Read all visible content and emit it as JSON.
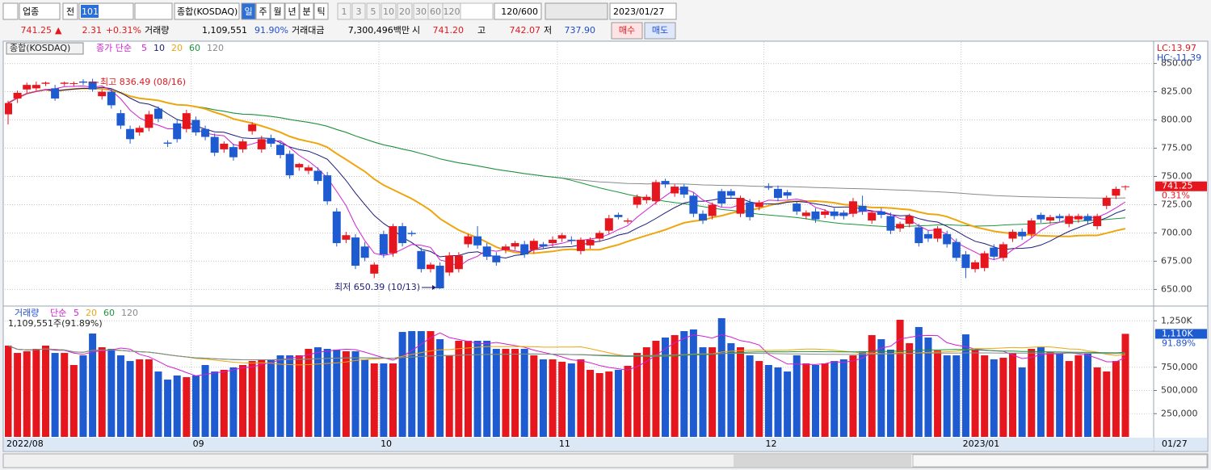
{
  "toolbar": {
    "market": "업종",
    "all": "전",
    "code": "101",
    "name": "종합(KOSDAQ)",
    "periods": [
      "일",
      "주",
      "월",
      "년",
      "분",
      "틱"
    ],
    "minutes": [
      "1",
      "3",
      "5",
      "10",
      "20",
      "30",
      "60",
      "120"
    ],
    "count": "120/600",
    "date": "2023/01/27"
  },
  "quote": {
    "price": "741.25",
    "arrow": "▲",
    "change": "2.31",
    "change_pct": "+0.31%",
    "volume_label": "거래량",
    "volume": "1,109,551",
    "volume_ratio": "91.90%",
    "amount_label": "거래대금",
    "amount": "7,300,496백만",
    "open_label": "시",
    "open": "741.20",
    "high_label": "고",
    "high": "742.07",
    "low_label": "저",
    "low": "737.90",
    "buy": "매수",
    "sell": "매도"
  },
  "chart_data": [
    {
      "type": "candlestick",
      "legend_name": "종합(KOSDAQ)",
      "ma_label": "종가 단순",
      "ma": [
        {
          "period": 5,
          "color": "#d21fd2"
        },
        {
          "period": 10,
          "color": "#1c1c7a"
        },
        {
          "period": 20,
          "color": "#eea60e"
        },
        {
          "period": 60,
          "color": "#1a963a"
        },
        {
          "period": 120,
          "color": "#8a8a8a"
        }
      ],
      "categories": [
        "2022/08",
        null,
        null,
        null,
        null,
        null,
        null,
        null,
        null,
        null,
        null,
        null,
        null,
        null,
        null,
        null,
        null,
        null,
        null,
        null,
        "09",
        null,
        null,
        null,
        null,
        null,
        null,
        null,
        null,
        null,
        null,
        null,
        null,
        null,
        null,
        null,
        null,
        null,
        null,
        null,
        "10",
        null,
        null,
        null,
        null,
        null,
        null,
        null,
        null,
        null,
        null,
        null,
        null,
        null,
        null,
        null,
        null,
        null,
        null,
        "11",
        null,
        null,
        null,
        null,
        null,
        null,
        null,
        null,
        null,
        null,
        null,
        null,
        null,
        null,
        null,
        null,
        null,
        null,
        null,
        null,
        null,
        "12",
        null,
        null,
        null,
        null,
        null,
        null,
        null,
        null,
        null,
        null,
        null,
        null,
        null,
        null,
        null,
        null,
        null,
        null,
        null,
        null,
        "2023/01",
        null,
        null,
        null,
        null,
        null,
        null,
        null,
        null,
        null,
        null,
        null,
        null,
        null,
        null,
        null,
        null,
        null
      ],
      "x_end_label": "01/27",
      "candles": [
        [
          805,
          817,
          796,
          815
        ],
        [
          819,
          826,
          815,
          824
        ],
        [
          827,
          833,
          824,
          831
        ],
        [
          828,
          834,
          826,
          831
        ],
        [
          832,
          834,
          830,
          833
        ],
        [
          828,
          831,
          817,
          819
        ],
        [
          832,
          834,
          830,
          833
        ],
        [
          832,
          834,
          830,
          832.5
        ],
        [
          834,
          836,
          831,
          833
        ],
        [
          834,
          836.49,
          825,
          827
        ],
        [
          821,
          827,
          818,
          825
        ],
        [
          825,
          828,
          810,
          813
        ],
        [
          806,
          809,
          792,
          795
        ],
        [
          792,
          795,
          779,
          783
        ],
        [
          789,
          795,
          786,
          793
        ],
        [
          793,
          808,
          790,
          805
        ],
        [
          810,
          812,
          798,
          801
        ],
        [
          780,
          782,
          776,
          779
        ],
        [
          797,
          800,
          780,
          783
        ],
        [
          792,
          809,
          789,
          806
        ],
        [
          800,
          803,
          786,
          789
        ],
        [
          792,
          795,
          782,
          785
        ],
        [
          785,
          788,
          768,
          771
        ],
        [
          774,
          781,
          771,
          779
        ],
        [
          776,
          779,
          764,
          767
        ],
        [
          774,
          783,
          771,
          781
        ],
        [
          790,
          798,
          787,
          796
        ],
        [
          774,
          786,
          771,
          783
        ],
        [
          784,
          787,
          776,
          779
        ],
        [
          778,
          781,
          766,
          769
        ],
        [
          770,
          773,
          748,
          751
        ],
        [
          758,
          762,
          755,
          761
        ],
        [
          755,
          760,
          752,
          758
        ],
        [
          755,
          758,
          743,
          746
        ],
        [
          751,
          754,
          725,
          728
        ],
        [
          719,
          722,
          688,
          691
        ],
        [
          694,
          701,
          691,
          698
        ],
        [
          696,
          699,
          668,
          671
        ],
        [
          688,
          692,
          675,
          678
        ],
        [
          664,
          674,
          660,
          672
        ],
        [
          699,
          702,
          678,
          681
        ],
        [
          682,
          708,
          679,
          706
        ],
        [
          706,
          709,
          688,
          691
        ],
        [
          700,
          702,
          697,
          699
        ],
        [
          684,
          687,
          665,
          668
        ],
        [
          668,
          674,
          665,
          672
        ],
        [
          671,
          674,
          650.39,
          651
        ],
        [
          665,
          683,
          662,
          680
        ],
        [
          668,
          683,
          665,
          680
        ],
        [
          690,
          699,
          687,
          697
        ],
        [
          697,
          706,
          686,
          689
        ],
        [
          688,
          691,
          676,
          679
        ],
        [
          680,
          683,
          671,
          674
        ],
        [
          685,
          690,
          682,
          688
        ],
        [
          688,
          693,
          685,
          691
        ],
        [
          690,
          693,
          678,
          681
        ],
        [
          685,
          695,
          682,
          693
        ],
        [
          690,
          692,
          686,
          688
        ],
        [
          691,
          697,
          688,
          694
        ],
        [
          695,
          700,
          692,
          698
        ],
        [
          694,
          697,
          690,
          693
        ],
        [
          684,
          696,
          681,
          694
        ],
        [
          689,
          696,
          686,
          694
        ],
        [
          695,
          702,
          692,
          700
        ],
        [
          702,
          716,
          699,
          713
        ],
        [
          716,
          718,
          712,
          714
        ],
        [
          710,
          713,
          708,
          711
        ],
        [
          725,
          734,
          722,
          732
        ],
        [
          729,
          734,
          726,
          732
        ],
        [
          728,
          747,
          725,
          745
        ],
        [
          746,
          748,
          740,
          743
        ],
        [
          735,
          743,
          732,
          741
        ],
        [
          741,
          743,
          731,
          734
        ],
        [
          733,
          736,
          714,
          717
        ],
        [
          717,
          720,
          708,
          711
        ],
        [
          715,
          727,
          712,
          725
        ],
        [
          737,
          739,
          723,
          726
        ],
        [
          737,
          739,
          730,
          733
        ],
        [
          717,
          733,
          714,
          731
        ],
        [
          727,
          730,
          711,
          714
        ],
        [
          723,
          729,
          720,
          727
        ],
        [
          741,
          744,
          738,
          740
        ],
        [
          739,
          742,
          728,
          731
        ],
        [
          736,
          738,
          730,
          733
        ],
        [
          726,
          728,
          716,
          719
        ],
        [
          715,
          720,
          712,
          718
        ],
        [
          719,
          722,
          709,
          712
        ],
        [
          716,
          721,
          713,
          719
        ],
        [
          719,
          722,
          712,
          715
        ],
        [
          718,
          720,
          712,
          715
        ],
        [
          717,
          731,
          714,
          728
        ],
        [
          724,
          733,
          716,
          719
        ],
        [
          711,
          720,
          708,
          718
        ],
        [
          719,
          722,
          713,
          716
        ],
        [
          715,
          718,
          699,
          702
        ],
        [
          704,
          710,
          701,
          708
        ],
        [
          708,
          717,
          705,
          715
        ],
        [
          705,
          708,
          688,
          691
        ],
        [
          699,
          702,
          692,
          695
        ],
        [
          695,
          706,
          692,
          704
        ],
        [
          699,
          702,
          687,
          690
        ],
        [
          692,
          695,
          675,
          678
        ],
        [
          681,
          684,
          660,
          669
        ],
        [
          668,
          676,
          665,
          674
        ],
        [
          669,
          684,
          666,
          682
        ],
        [
          687,
          690,
          676,
          679
        ],
        [
          678,
          692,
          675,
          690
        ],
        [
          695,
          703,
          692,
          701
        ],
        [
          701,
          704,
          694,
          697
        ],
        [
          699,
          713,
          696,
          711
        ],
        [
          716,
          718,
          709,
          712
        ],
        [
          711,
          716,
          708,
          714
        ],
        [
          715,
          717,
          710,
          713
        ],
        [
          708,
          717,
          705,
          715
        ],
        [
          712,
          717,
          709,
          715
        ],
        [
          715,
          717,
          708,
          711
        ],
        [
          706,
          717,
          703,
          715
        ],
        [
          724,
          733,
          721,
          731
        ],
        [
          733,
          741,
          730,
          739
        ],
        [
          741.2,
          742.07,
          737.9,
          741.25
        ]
      ],
      "up_color": "#e5161d",
      "down_color": "#1f5bd0",
      "ylim": [
        636,
        869
      ],
      "yticks": [
        {
          "value": 650,
          "label": "650.00"
        },
        {
          "value": 675,
          "label": "675.00"
        },
        {
          "value": 700,
          "label": "700.00"
        },
        {
          "value": 725,
          "label": "725.00"
        },
        {
          "value": 750,
          "label": "750.00"
        },
        {
          "value": 775,
          "label": "775.00"
        },
        {
          "value": 800,
          "label": "800.00"
        },
        {
          "value": 825,
          "label": "825.00"
        },
        {
          "value": 850,
          "label": "850.00"
        }
      ],
      "grid": true,
      "annotations": [
        "최고 836.49 (08/16)",
        "최저 650.39 (10/13)"
      ],
      "lc_label": "LC:13.97",
      "hc_label": "HC:-11.39",
      "last_label": "741.25",
      "last_pct": "0.31%"
    },
    {
      "type": "bar",
      "legend_name": "거래량",
      "ma_label": "단순",
      "ma": [
        {
          "period": 5,
          "color": "#d21fd2"
        },
        {
          "period": 20,
          "color": "#eea60e"
        },
        {
          "period": 60,
          "color": "#1a963a"
        },
        {
          "period": 120,
          "color": "#8a8a8a"
        }
      ],
      "summary": "1,109,551주(91.89%)",
      "values": [
        983000,
        904000,
        922000,
        948000,
        983000,
        904000,
        904000,
        774000,
        878000,
        1113000,
        965000,
        948000,
        878000,
        817000,
        835000,
        835000,
        704000,
        617000,
        661000,
        643000,
        661000,
        774000,
        704000,
        722000,
        748000,
        774000,
        817000,
        835000,
        835000,
        878000,
        878000,
        878000,
        948000,
        965000,
        948000,
        939000,
        922000,
        922000,
        835000,
        791000,
        791000,
        791000,
        1130000,
        1139000,
        1139000,
        1139000,
        1052000,
        878000,
        1035000,
        1035000,
        1035000,
        1035000,
        948000,
        948000,
        948000,
        948000,
        878000,
        835000,
        835000,
        809000,
        791000,
        835000,
        722000,
        687000,
        704000,
        722000,
        765000,
        904000,
        965000,
        1035000,
        1070000,
        1096000,
        1139000,
        1157000,
        965000,
        965000,
        1278000,
        1009000,
        965000,
        878000,
        817000,
        774000,
        748000,
        704000,
        878000,
        791000,
        774000,
        791000,
        817000,
        835000,
        878000,
        922000,
        1096000,
        1052000,
        939000,
        1261000,
        1009000,
        1183000,
        1070000,
        930000,
        878000,
        878000,
        1104000,
        939000,
        878000,
        835000,
        852000,
        904000,
        748000,
        948000,
        965000,
        913000,
        896000,
        817000,
        878000,
        896000,
        748000,
        704000,
        817000,
        1109551
      ],
      "ylim": [
        0,
        1400000
      ],
      "yticks": [
        {
          "value": 250000,
          "label": "250,000"
        },
        {
          "value": 500000,
          "label": "500,000"
        },
        {
          "value": 750000,
          "label": "750,000"
        },
        {
          "value": 1250000,
          "label": "1,250K"
        }
      ],
      "grid": true,
      "last_label": "1,110K",
      "last_pct": "91.89%"
    }
  ]
}
